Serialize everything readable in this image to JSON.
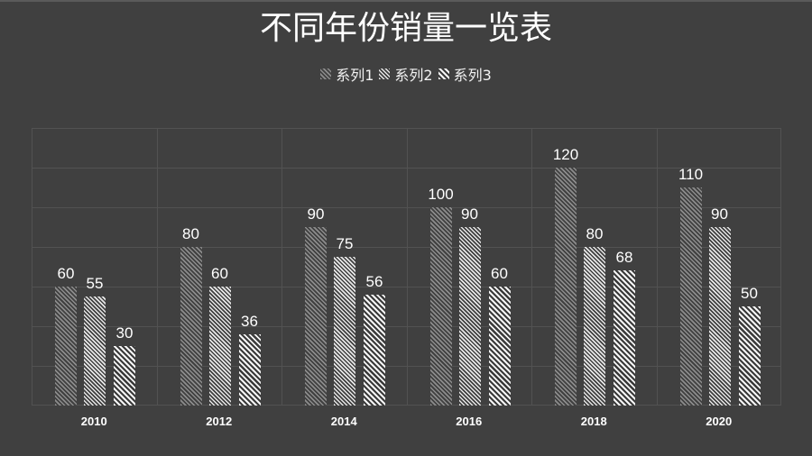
{
  "title": "不同年份销量一览表",
  "legend": [
    {
      "name": "系列1",
      "swatch": "s1"
    },
    {
      "name": "系列2",
      "swatch": "s2"
    },
    {
      "name": "系列3",
      "swatch": "s3"
    }
  ],
  "colors": {
    "background": "#404040",
    "gridline": "#525252",
    "series1": "#8c8c8c",
    "series2": "#e6e6e6",
    "series3": "#f5f5f5",
    "text": "#ffffff"
  },
  "chart_data": {
    "type": "bar",
    "title": "不同年份销量一览表",
    "categories": [
      "2010",
      "2012",
      "2014",
      "2016",
      "2018",
      "2020"
    ],
    "series": [
      {
        "name": "系列1",
        "values": [
          60,
          80,
          90,
          100,
          120,
          110
        ]
      },
      {
        "name": "系列2",
        "values": [
          55,
          60,
          75,
          90,
          80,
          90
        ]
      },
      {
        "name": "系列3",
        "values": [
          30,
          36,
          56,
          60,
          68,
          50
        ]
      }
    ],
    "xlabel": "",
    "ylabel": "",
    "ylim": [
      0,
      140
    ],
    "yticks_hidden": true,
    "grid": true,
    "legend_position": "top",
    "data_labels": true,
    "bar_fill": "hatched"
  }
}
